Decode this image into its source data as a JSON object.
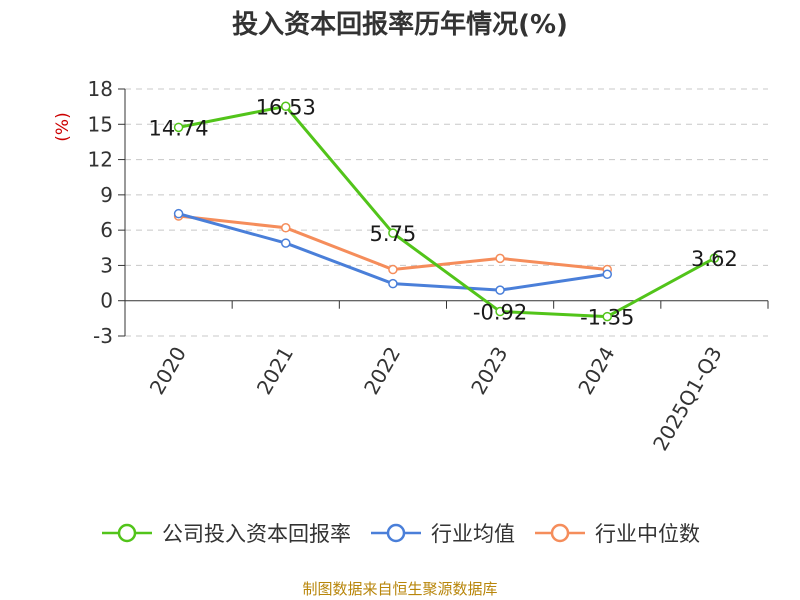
{
  "chart_data": {
    "type": "line",
    "title": "投入资本回报率历年情况(%)",
    "ylabel": "(%)",
    "categories": [
      "2020",
      "2021",
      "2022",
      "2023",
      "2024",
      "2025Q1-Q3"
    ],
    "ylim": [
      -3,
      18
    ],
    "yticks": [
      -3,
      0,
      3,
      6,
      9,
      12,
      15,
      18
    ],
    "grid": true,
    "legend_position": "bottom",
    "series": [
      {
        "name": "公司投入资本回报率",
        "color": "#52c41a",
        "values": [
          14.74,
          16.53,
          5.75,
          -0.92,
          -1.35,
          3.62
        ],
        "labels": [
          "14.74",
          "16.53",
          "5.75",
          "-0.92",
          "-1.35",
          "3.62"
        ]
      },
      {
        "name": "行业均值",
        "color": "#4a7fd9",
        "values": [
          7.4,
          4.9,
          1.45,
          0.9,
          2.25,
          null
        ]
      },
      {
        "name": "行业中位数",
        "color": "#f58d5b",
        "values": [
          7.2,
          6.2,
          2.65,
          3.6,
          2.65,
          null
        ]
      }
    ]
  },
  "source": "制图数据来自恒生聚源数据库"
}
